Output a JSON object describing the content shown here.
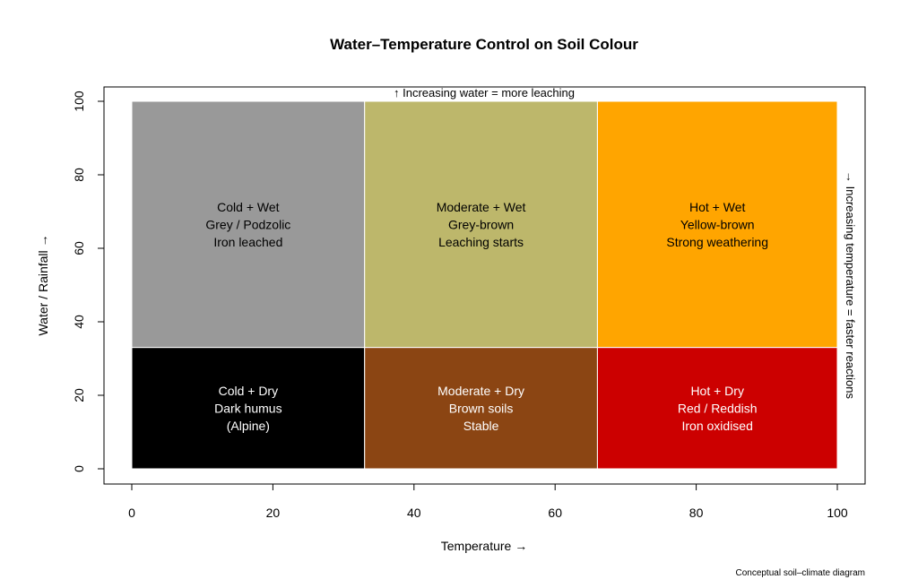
{
  "chart_data": {
    "type": "heatmap",
    "title": "Water–Temperature Control on Soil Colour",
    "xlabel": "Temperature →",
    "ylabel": "Water / Rainfall →",
    "xlim": [
      0,
      100
    ],
    "ylim": [
      0,
      100
    ],
    "x_ticks": [
      0,
      20,
      40,
      60,
      80,
      100
    ],
    "y_ticks": [
      0,
      20,
      40,
      60,
      80,
      100
    ],
    "top_annotation": "↑ Increasing water = more leaching",
    "right_annotation": "→ Increasing temperature = faster reactions",
    "caption": "Conceptual soil–climate diagram",
    "grid": false,
    "cells": [
      {
        "x0": 0,
        "x1": 33,
        "y0": 33,
        "y1": 100,
        "color": "#999999",
        "text_color": "#000000",
        "lines": [
          "Cold + Wet",
          "Grey / Podzolic",
          "Iron leached"
        ]
      },
      {
        "x0": 33,
        "x1": 66,
        "y0": 33,
        "y1": 100,
        "color": "#BDB76B",
        "text_color": "#000000",
        "lines": [
          "Moderate + Wet",
          "Grey-brown",
          "Leaching starts"
        ]
      },
      {
        "x0": 66,
        "x1": 100,
        "y0": 33,
        "y1": 100,
        "color": "#FFA500",
        "text_color": "#000000",
        "lines": [
          "Hot + Wet",
          "Yellow-brown",
          "Strong weathering"
        ]
      },
      {
        "x0": 0,
        "x1": 33,
        "y0": 0,
        "y1": 33,
        "color": "#000000",
        "text_color": "#ffffff",
        "lines": [
          "Cold + Dry",
          "Dark humus",
          "(Alpine)"
        ]
      },
      {
        "x0": 33,
        "x1": 66,
        "y0": 0,
        "y1": 33,
        "color": "#8B4513",
        "text_color": "#ffffff",
        "lines": [
          "Moderate + Dry",
          "Brown soils",
          "Stable"
        ]
      },
      {
        "x0": 66,
        "x1": 100,
        "y0": 0,
        "y1": 33,
        "color": "#CC0000",
        "text_color": "#ffffff",
        "lines": [
          "Hot + Dry",
          "Red / Reddish",
          "Iron oxidised"
        ]
      }
    ]
  }
}
